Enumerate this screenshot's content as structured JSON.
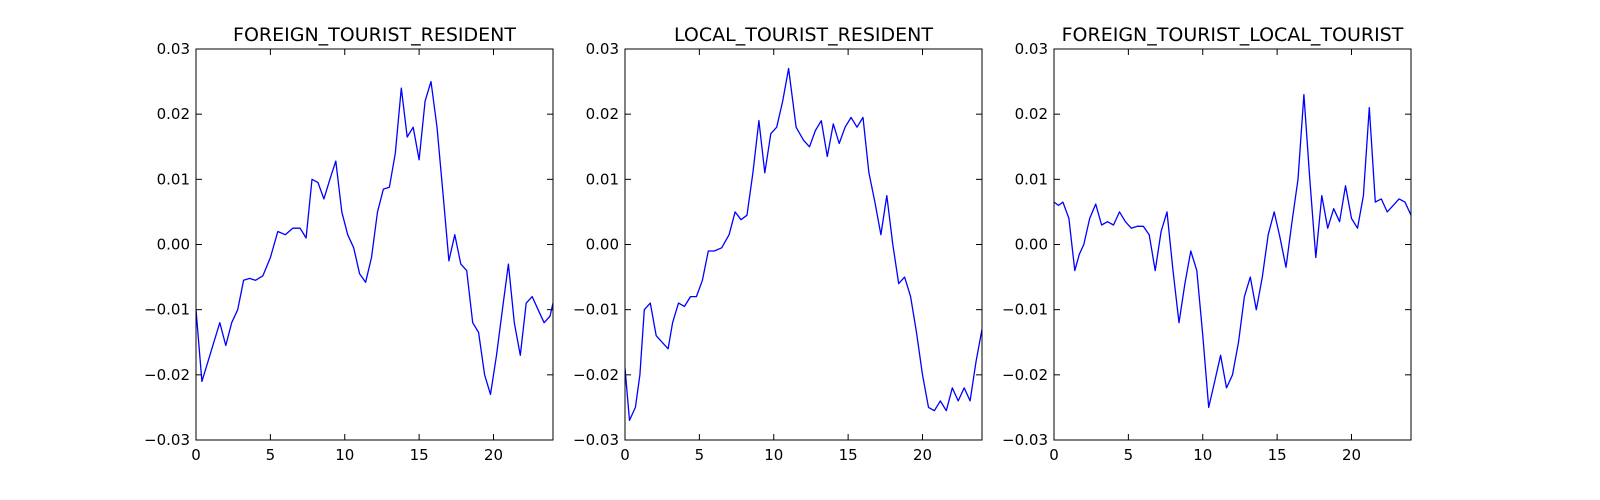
{
  "chart_data": [
    {
      "type": "line",
      "title": "FOREIGN_TOURIST_RESIDENT",
      "xlim": [
        0,
        24
      ],
      "ylim": [
        -0.03,
        0.03
      ],
      "xticks": [
        0,
        5,
        10,
        15,
        20
      ],
      "xtick_labels": [
        "0",
        "5",
        "10",
        "15",
        "20"
      ],
      "yticks": [
        0.03,
        0.02,
        0.01,
        0.0,
        -0.01,
        -0.02,
        -0.03
      ],
      "ytick_labels": [
        "0.03",
        "0.02",
        "0.01",
        "0.00",
        "−0.01",
        "−0.02",
        "−0.03"
      ],
      "grid": false,
      "color": "#0000ff",
      "x": [
        0,
        0.4,
        0.8,
        1.2,
        1.6,
        2.0,
        2.4,
        2.8,
        3.2,
        3.6,
        4.0,
        4.5,
        5.0,
        5.5,
        6.0,
        6.5,
        7.0,
        7.4,
        7.8,
        8.2,
        8.6,
        9.0,
        9.4,
        9.8,
        10.2,
        10.6,
        11.0,
        11.4,
        11.8,
        12.2,
        12.6,
        13.0,
        13.4,
        13.8,
        14.2,
        14.6,
        15.0,
        15.4,
        15.8,
        16.2,
        16.6,
        17.0,
        17.4,
        17.8,
        18.2,
        18.6,
        19.0,
        19.4,
        19.8,
        20.2,
        20.6,
        21.0,
        21.4,
        21.8,
        22.2,
        22.6,
        23.0,
        23.4,
        23.8,
        24.0
      ],
      "y": [
        -0.01,
        -0.021,
        -0.018,
        -0.015,
        -0.012,
        -0.0155,
        -0.012,
        -0.01,
        -0.0055,
        -0.0052,
        -0.0055,
        -0.0048,
        -0.002,
        0.002,
        0.0015,
        0.0025,
        0.0025,
        0.001,
        0.01,
        0.0095,
        0.007,
        0.01,
        0.0128,
        0.005,
        0.0015,
        -0.0005,
        -0.0045,
        -0.0058,
        -0.002,
        0.005,
        0.0085,
        0.0088,
        0.014,
        0.024,
        0.0165,
        0.018,
        0.013,
        0.022,
        0.025,
        0.018,
        0.008,
        -0.0025,
        0.0015,
        -0.003,
        -0.004,
        -0.012,
        -0.0135,
        -0.02,
        -0.023,
        -0.017,
        -0.01,
        -0.003,
        -0.012,
        -0.017,
        -0.009,
        -0.008,
        -0.01,
        -0.012,
        -0.011,
        -0.009
      ]
    },
    {
      "type": "line",
      "title": "LOCAL_TOURIST_RESIDENT",
      "xlim": [
        0,
        24
      ],
      "ylim": [
        -0.03,
        0.03
      ],
      "xticks": [
        0,
        5,
        10,
        15,
        20
      ],
      "xtick_labels": [
        "0",
        "5",
        "10",
        "15",
        "20"
      ],
      "yticks": [
        0.03,
        0.02,
        0.01,
        0.0,
        -0.01,
        -0.02,
        -0.03
      ],
      "ytick_labels": [
        "0.03",
        "0.02",
        "0.01",
        "0.00",
        "−0.01",
        "−0.02",
        "−0.03"
      ],
      "grid": false,
      "color": "#0000ff",
      "x": [
        0,
        0.3,
        0.7,
        1.0,
        1.3,
        1.7,
        2.1,
        2.5,
        2.9,
        3.2,
        3.6,
        4.0,
        4.4,
        4.8,
        5.2,
        5.6,
        6.0,
        6.5,
        7.0,
        7.4,
        7.8,
        8.2,
        8.6,
        9.0,
        9.4,
        9.8,
        10.2,
        10.6,
        11.0,
        11.5,
        12.0,
        12.4,
        12.8,
        13.2,
        13.6,
        14.0,
        14.4,
        14.8,
        15.2,
        15.6,
        16.0,
        16.4,
        16.8,
        17.2,
        17.6,
        18.0,
        18.4,
        18.8,
        19.2,
        19.6,
        20.0,
        20.4,
        20.8,
        21.2,
        21.6,
        22.0,
        22.4,
        22.8,
        23.2,
        23.6,
        24.0
      ],
      "y": [
        -0.019,
        -0.027,
        -0.025,
        -0.02,
        -0.01,
        -0.009,
        -0.014,
        -0.015,
        -0.016,
        -0.012,
        -0.009,
        -0.0095,
        -0.008,
        -0.008,
        -0.0055,
        -0.001,
        -0.001,
        -0.0005,
        0.0015,
        0.005,
        0.0038,
        0.0045,
        0.011,
        0.019,
        0.011,
        0.017,
        0.018,
        0.022,
        0.027,
        0.018,
        0.016,
        0.015,
        0.0175,
        0.019,
        0.0135,
        0.0185,
        0.0155,
        0.018,
        0.0195,
        0.018,
        0.0195,
        0.011,
        0.0065,
        0.0015,
        0.0075,
        0.0,
        -0.006,
        -0.005,
        -0.008,
        -0.0135,
        -0.02,
        -0.025,
        -0.0255,
        -0.024,
        -0.0255,
        -0.022,
        -0.024,
        -0.022,
        -0.024,
        -0.018,
        -0.013
      ]
    },
    {
      "type": "line",
      "title": "FOREIGN_TOURIST_LOCAL_TOURIST",
      "xlim": [
        0,
        24
      ],
      "ylim": [
        -0.03,
        0.03
      ],
      "xticks": [
        0,
        5,
        10,
        15,
        20
      ],
      "xtick_labels": [
        "0",
        "5",
        "10",
        "15",
        "20"
      ],
      "yticks": [
        0.03,
        0.02,
        0.01,
        0.0,
        -0.01,
        -0.02,
        -0.03
      ],
      "ytick_labels": [
        "0.03",
        "0.02",
        "0.01",
        "0.00",
        "−0.01",
        "−0.02",
        "−0.03"
      ],
      "grid": false,
      "color": "#0000ff",
      "x": [
        0,
        0.3,
        0.6,
        1.0,
        1.4,
        1.7,
        2.0,
        2.4,
        2.8,
        3.2,
        3.6,
        4.0,
        4.4,
        4.8,
        5.2,
        5.6,
        6.0,
        6.4,
        6.8,
        7.2,
        7.6,
        8.0,
        8.4,
        8.8,
        9.2,
        9.6,
        10.0,
        10.4,
        10.8,
        11.2,
        11.6,
        12.0,
        12.4,
        12.8,
        13.2,
        13.6,
        14.0,
        14.4,
        14.8,
        15.2,
        15.6,
        16.0,
        16.4,
        16.8,
        17.2,
        17.6,
        18.0,
        18.4,
        18.8,
        19.2,
        19.6,
        20.0,
        20.4,
        20.8,
        21.2,
        21.6,
        22.0,
        22.4,
        22.8,
        23.2,
        23.6,
        24.0
      ],
      "y": [
        0.0065,
        0.006,
        0.0065,
        0.004,
        -0.004,
        -0.0015,
        0.0,
        0.004,
        0.0062,
        0.003,
        0.0035,
        0.003,
        0.005,
        0.0035,
        0.0025,
        0.0028,
        0.0028,
        0.0015,
        -0.004,
        0.002,
        0.005,
        -0.004,
        -0.012,
        -0.006,
        -0.001,
        -0.004,
        -0.014,
        -0.025,
        -0.021,
        -0.017,
        -0.022,
        -0.02,
        -0.015,
        -0.008,
        -0.005,
        -0.01,
        -0.005,
        0.0015,
        0.005,
        0.001,
        -0.0035,
        0.0035,
        0.01,
        0.023,
        0.01,
        -0.002,
        0.0075,
        0.0025,
        0.0055,
        0.0035,
        0.009,
        0.004,
        0.0025,
        0.0075,
        0.021,
        0.0065,
        0.007,
        0.005,
        0.006,
        0.007,
        0.0065,
        0.0045
      ]
    }
  ]
}
